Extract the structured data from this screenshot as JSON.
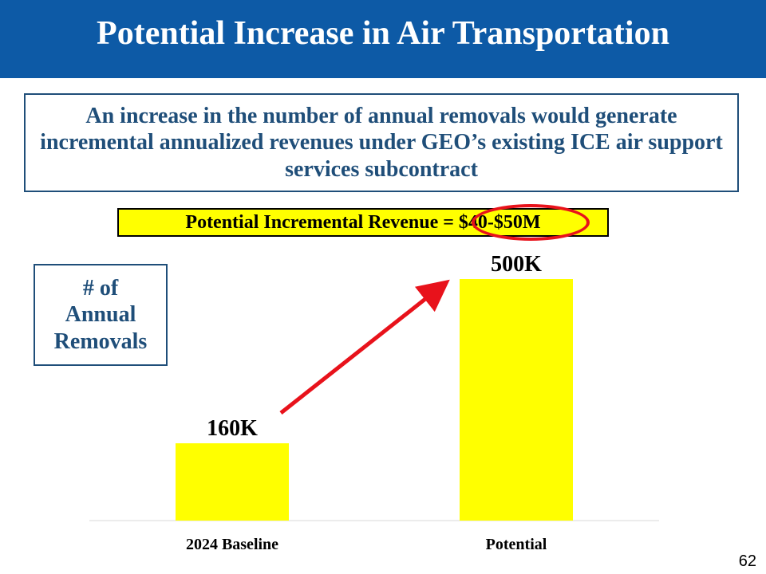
{
  "slide": {
    "title": "Potential Increase in Air Transportation",
    "subtitle": "An increase in the number of annual removals would generate incremental annualized revenues under GEO’s existing ICE air support services subcontract",
    "revenue_label": "Potential Incremental Revenue =",
    "revenue_value": "$40-$50M",
    "page_number": "62"
  },
  "chart_data": {
    "type": "bar",
    "categories": [
      "2024 Baseline",
      "Potential"
    ],
    "values": [
      160,
      500
    ],
    "data_labels": [
      "160K",
      "500K"
    ],
    "ylabel": "# of Annual Removals",
    "units": "thousands",
    "ylim": [
      0,
      500
    ],
    "grid": false,
    "legend": "none",
    "bar_color": "#ffff00",
    "arrow_color": "#e8121b"
  },
  "colors": {
    "header": "#0d5aa6",
    "accent_text": "#1f4e79",
    "banner": "#ffff00",
    "highlight": "#e8121b"
  }
}
